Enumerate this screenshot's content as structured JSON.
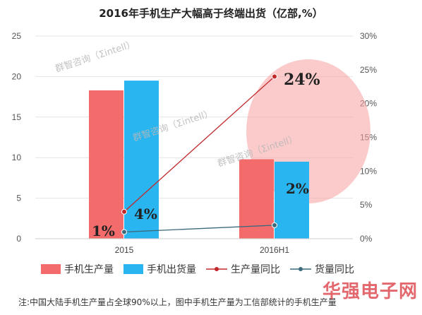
{
  "chart_data": {
    "type": "bar",
    "title": "2016年手机生产大幅高于终端出货（亿部,%）",
    "categories": [
      "2015",
      "2016H1"
    ],
    "series": [
      {
        "name": "手机生产量",
        "kind": "bar",
        "axis": "left",
        "color": "#f46b6b",
        "values": [
          18.3,
          9.8
        ]
      },
      {
        "name": "手机出货量",
        "kind": "bar",
        "axis": "left",
        "color": "#29b6f0",
        "values": [
          19.5,
          9.5
        ]
      },
      {
        "name": "生产量同比",
        "kind": "line",
        "axis": "right",
        "color": "#c0282c",
        "values": [
          4,
          24
        ]
      },
      {
        "name": "货量同比",
        "kind": "line",
        "axis": "right",
        "color": "#3d6a7d",
        "values": [
          1,
          2
        ]
      }
    ],
    "y_left": {
      "min": 0,
      "max": 25,
      "ticks": [
        "0",
        "5",
        "10",
        "15",
        "20",
        "25"
      ]
    },
    "y_right": {
      "min": 0,
      "max": 30,
      "ticks": [
        "0%",
        "5%",
        "10%",
        "15%",
        "20%",
        "25%",
        "30%"
      ]
    },
    "grid": true,
    "legend_position": "bottom",
    "annotations": [
      {
        "text": "4%",
        "series": 2,
        "point": 0
      },
      {
        "text": "24%",
        "series": 2,
        "point": 1
      },
      {
        "text": "1%",
        "series": 3,
        "point": 0
      },
      {
        "text": "2%",
        "series": 3,
        "point": 1
      }
    ],
    "highlight_color": "#f7a0a0"
  },
  "watermark": "群智咨询（Σintell）",
  "note": "注:中国大陆手机生产量占全球90%以上，图中手机生产量为工信部统计的手机生产量",
  "brand": "华强电子网"
}
